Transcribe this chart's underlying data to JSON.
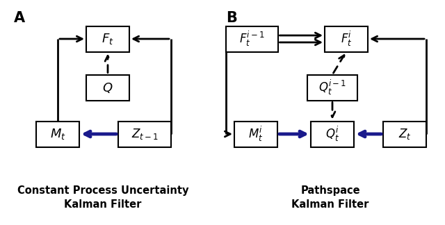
{
  "panel_A_label": "A",
  "panel_B_label": "B",
  "subtitle_A": "Constant Process Uncertainty\nKalman Filter",
  "subtitle_B": "Pathspace\nKalman Filter",
  "box_color": "white",
  "box_edge_color": "black",
  "blue_arrow_color": "#1a1a8c",
  "background_color": "white",
  "figw": 6.4,
  "figh": 3.24,
  "dpi": 100
}
